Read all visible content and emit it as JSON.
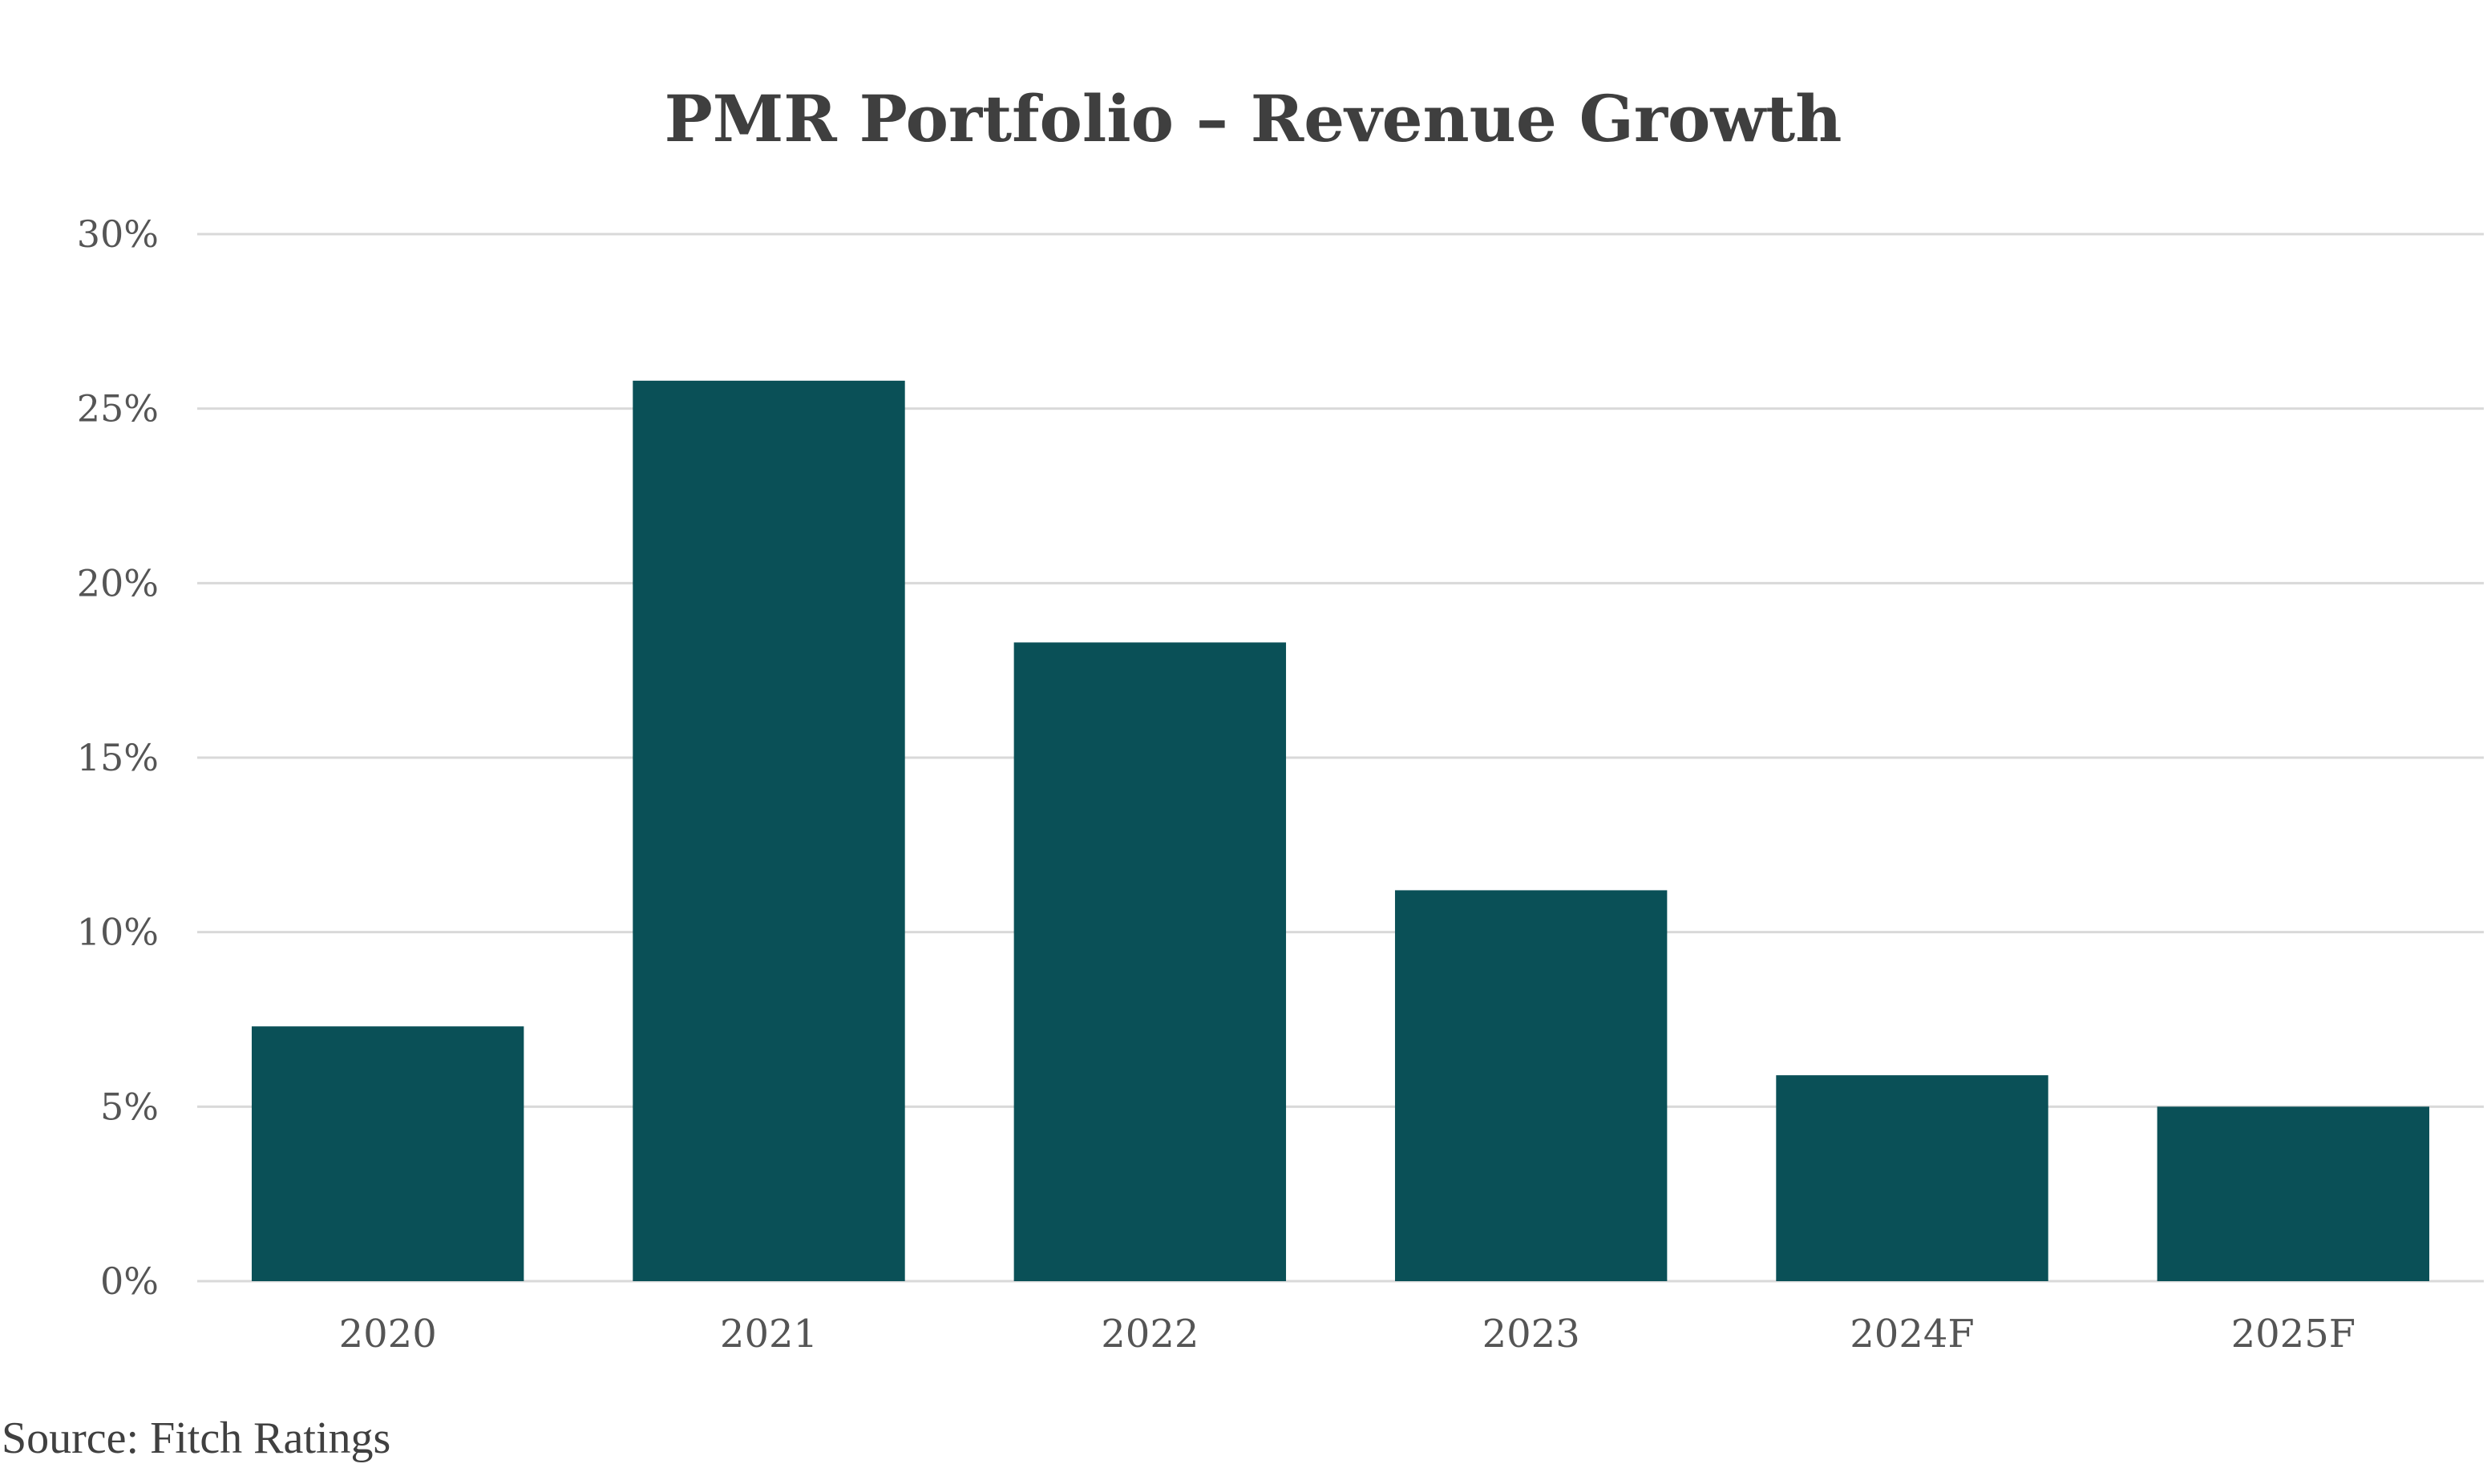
{
  "chart_data": {
    "type": "bar",
    "title": "PMR Portfolio – Revenue Growth",
    "categories": [
      "2020",
      "2021",
      "2022",
      "2023",
      "2024F",
      "2025F"
    ],
    "values": [
      7.3,
      25.8,
      18.3,
      11.2,
      5.9,
      5.0
    ],
    "y_tick_labels": [
      "0%",
      "5%",
      "10%",
      "15%",
      "20%",
      "25%",
      "30%"
    ],
    "y_ticks": [
      0,
      5,
      10,
      15,
      20,
      25,
      30
    ],
    "ylim": [
      0,
      30
    ],
    "xlabel": "",
    "ylabel": "",
    "grid": true,
    "legend": "none",
    "bar_color": "#0a5057",
    "source": "Source: Fitch Ratings"
  }
}
